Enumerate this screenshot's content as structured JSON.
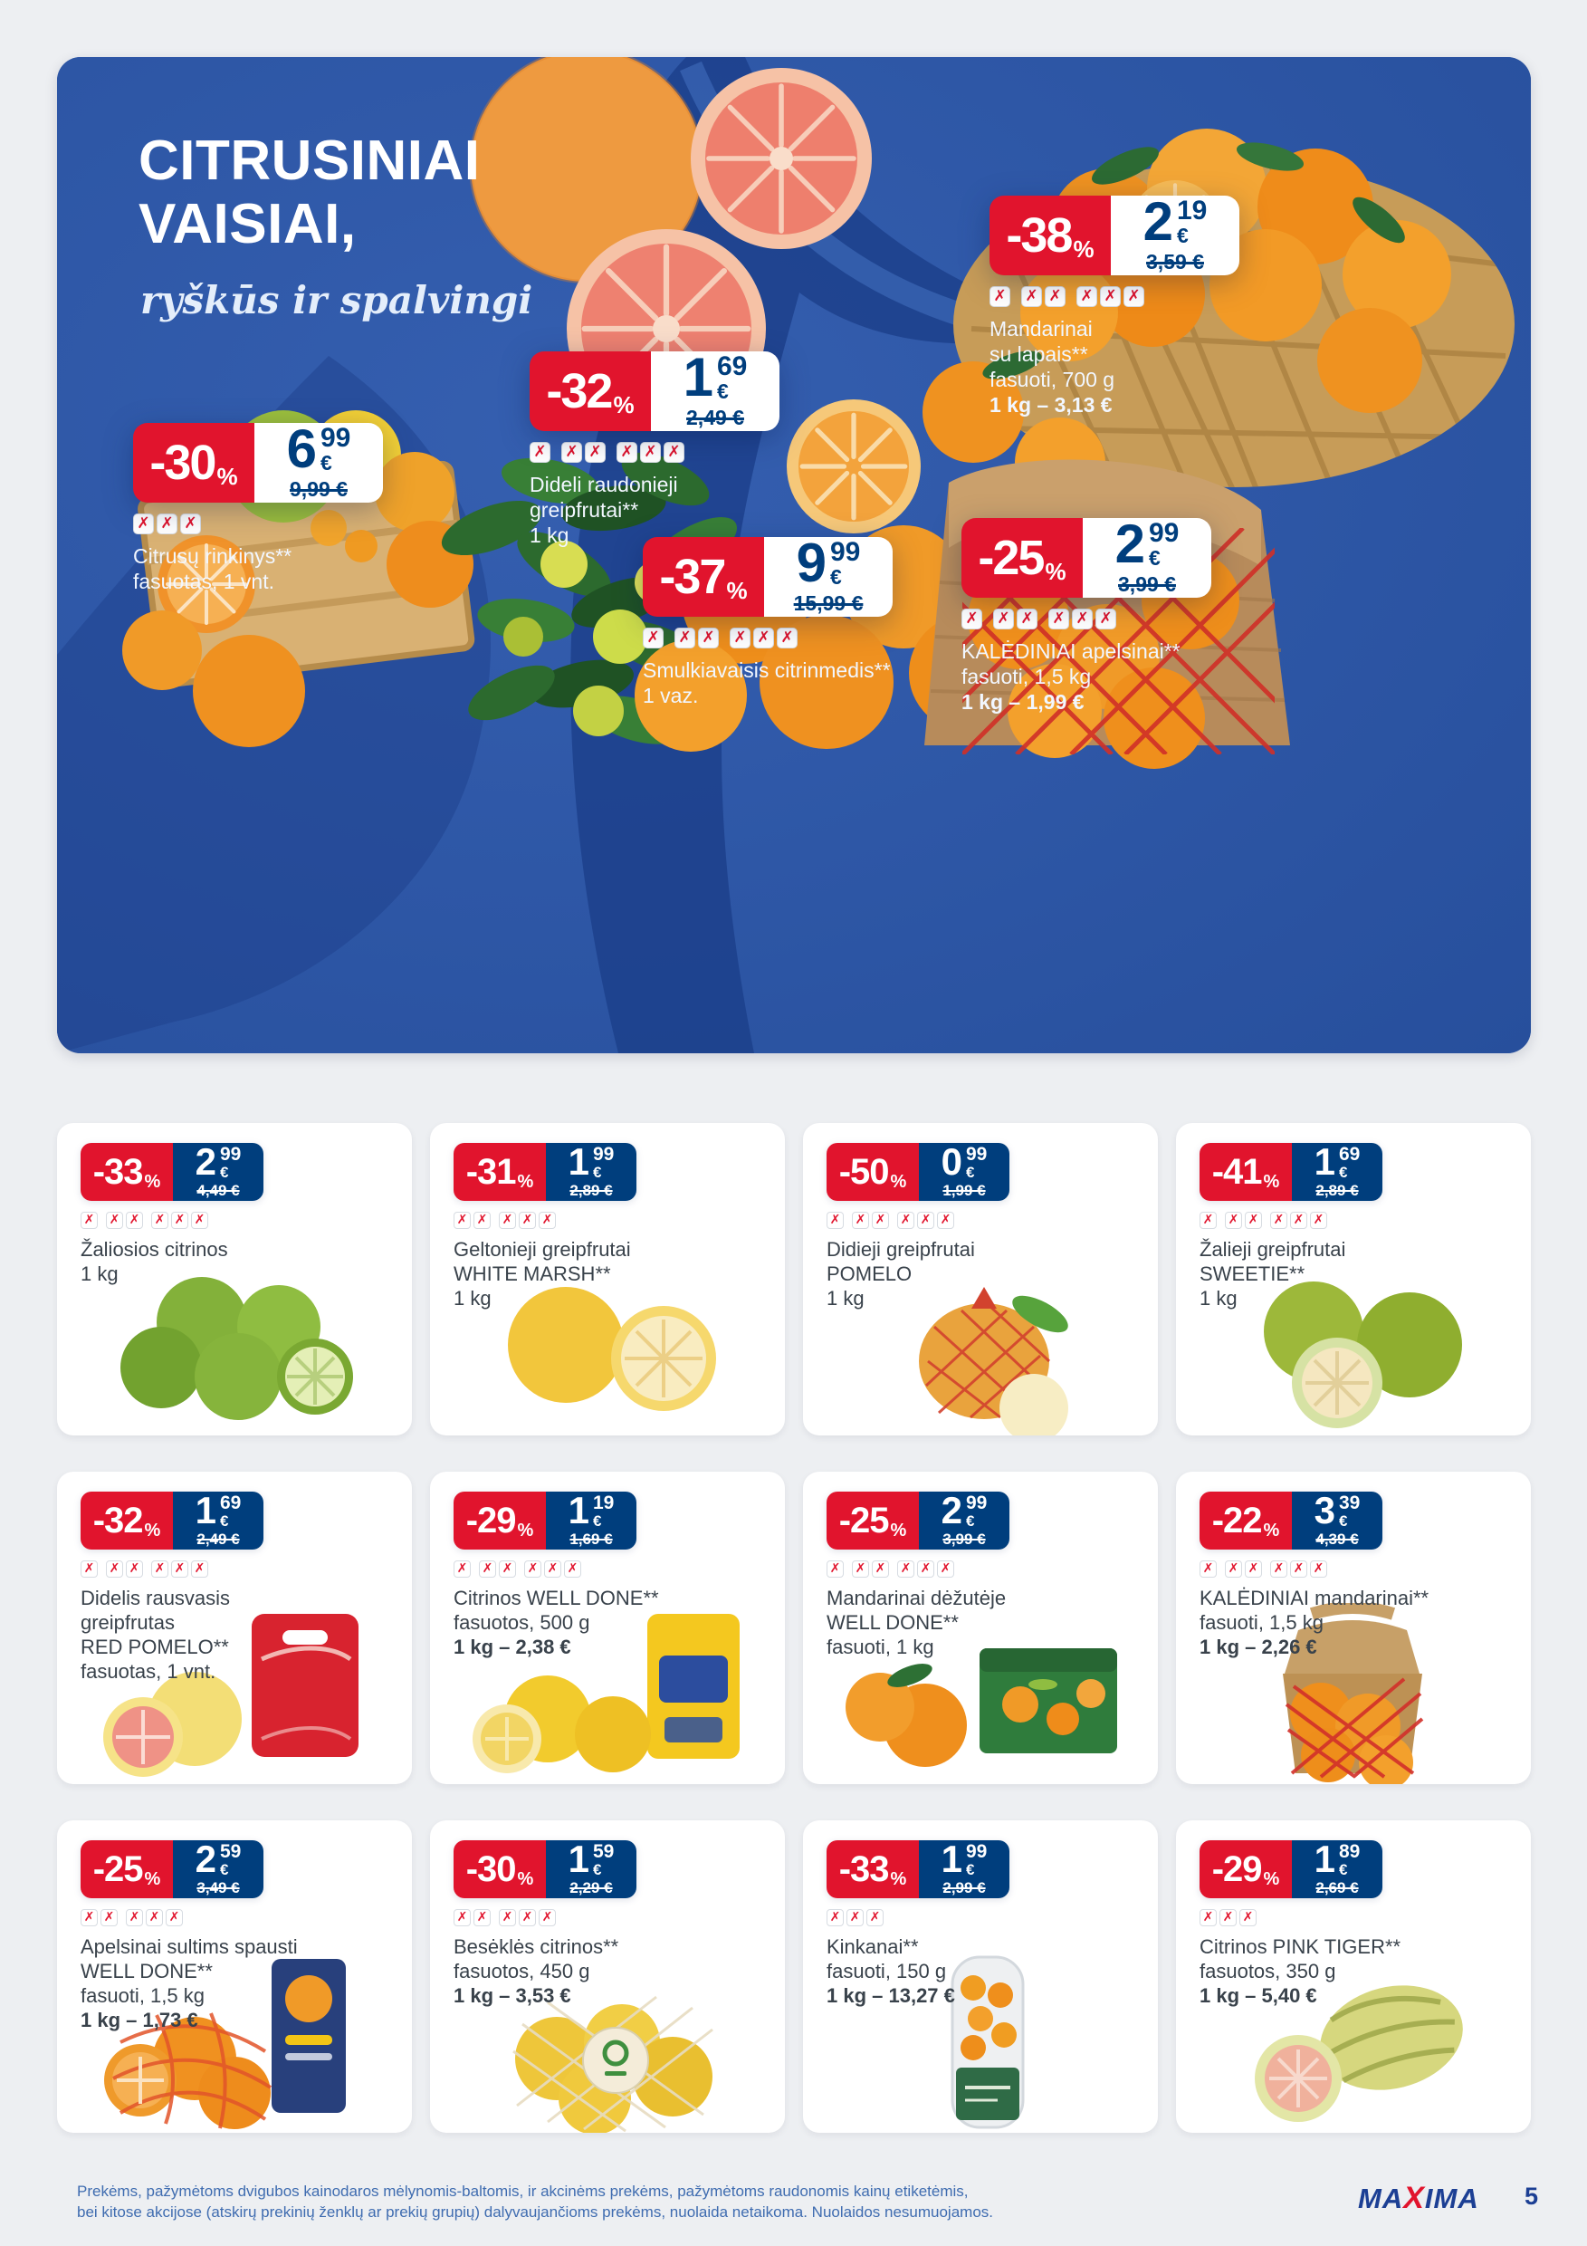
{
  "labels": {
    "percent": "%",
    "euro": "€",
    "store_format_glyph": "✗"
  },
  "colors": {
    "red": "#e1142d",
    "price_blue": "#003e7d",
    "hero_blue": "#2b55a2",
    "text": "#39424b",
    "footer_blue": "#3f6cb0",
    "brand_blue": "#1c3f94"
  },
  "hero": {
    "title_line1": "CITRUSINIAI",
    "title_line2": "VAISIAI,",
    "subtitle": "ryškūs ir spalvingi",
    "offers": [
      {
        "discount": "-30",
        "price_int": "6",
        "price_cents": "99",
        "old_price": "9,99 €",
        "groups": [
          "XXX"
        ],
        "lines": [
          "Citrusų rinkinys**",
          "fasuotas, 1 vnt."
        ],
        "bold_line": ""
      },
      {
        "discount": "-32",
        "price_int": "1",
        "price_cents": "69",
        "old_price": "2,49 €",
        "groups": [
          "X",
          "XX",
          "XXX"
        ],
        "lines": [
          "Dideli raudonieji",
          "greipfrutai**",
          "1 kg"
        ],
        "bold_line": ""
      },
      {
        "discount": "-38",
        "price_int": "2",
        "price_cents": "19",
        "old_price": "3,59 €",
        "groups": [
          "X",
          "XX",
          "XXX"
        ],
        "lines": [
          "Mandarinai",
          "su lapais**",
          "fasuoti, 700 g"
        ],
        "bold_line": "1 kg – 3,13 €"
      },
      {
        "discount": "-37",
        "price_int": "9",
        "price_cents": "99",
        "old_price": "15,99 €",
        "groups": [
          "X",
          "XX",
          "XXX"
        ],
        "lines": [
          "Smulkiavaisis citrinmedis**",
          "1 vaz."
        ],
        "bold_line": ""
      },
      {
        "discount": "-25",
        "price_int": "2",
        "price_cents": "99",
        "old_price": "3,99 €",
        "groups": [
          "X",
          "XX",
          "XXX"
        ],
        "lines": [
          "KALĖDINIAI apelsinai**",
          "fasuoti, 1,5 kg"
        ],
        "bold_line": "1 kg – 1,99 €"
      }
    ]
  },
  "products": [
    {
      "discount": "-33",
      "price_int": "2",
      "price_cents": "99",
      "old_price": "4,49 €",
      "groups": [
        "X",
        "XX",
        "XXX"
      ],
      "lines": [
        "Žaliosios citrinos",
        "1 kg"
      ],
      "bold_line": "",
      "image": "limes"
    },
    {
      "discount": "-31",
      "price_int": "1",
      "price_cents": "99",
      "old_price": "2,89 €",
      "groups": [
        "XX",
        "XXX"
      ],
      "lines": [
        "Geltonieji greipfrutai",
        "WHITE MARSH**",
        "1 kg"
      ],
      "bold_line": "",
      "image": "yellow_grapefruit"
    },
    {
      "discount": "-50",
      "price_int": "0",
      "price_cents": "99",
      "old_price": "1,99 €",
      "groups": [
        "X",
        "XX",
        "XXX"
      ],
      "lines": [
        "Didieji greipfrutai",
        "POMELO",
        "1 kg"
      ],
      "bold_line": "",
      "image": "pomelo_net"
    },
    {
      "discount": "-41",
      "price_int": "1",
      "price_cents": "69",
      "old_price": "2,89 €",
      "groups": [
        "X",
        "XX",
        "XXX"
      ],
      "lines": [
        "Žalieji greipfrutai",
        "SWEETIE**",
        "1 kg"
      ],
      "bold_line": "",
      "image": "sweetie"
    },
    {
      "discount": "-32",
      "price_int": "1",
      "price_cents": "69",
      "old_price": "2,49 €",
      "groups": [
        "X",
        "XX",
        "XXX"
      ],
      "lines": [
        "Didelis rausvasis",
        "greipfrutas",
        "RED POMELO**",
        "fasuotas, 1 vnt."
      ],
      "bold_line": "",
      "image": "red_pomelo_bag"
    },
    {
      "discount": "-29",
      "price_int": "1",
      "price_cents": "19",
      "old_price": "1,69 €",
      "groups": [
        "X",
        "XX",
        "XXX"
      ],
      "lines": [
        "Citrinos WELL DONE**",
        "fasuotos, 500 g"
      ],
      "bold_line": "1 kg – 2,38 €",
      "image": "lemons_pack"
    },
    {
      "discount": "-25",
      "price_int": "2",
      "price_cents": "99",
      "old_price": "3,99 €",
      "groups": [
        "X",
        "XX",
        "XXX"
      ],
      "lines": [
        "Mandarinai dėžutėje",
        "WELL DONE**",
        "fasuoti, 1 kg"
      ],
      "bold_line": "",
      "image": "mandarin_box"
    },
    {
      "discount": "-22",
      "price_int": "3",
      "price_cents": "39",
      "old_price": "4,39 €",
      "groups": [
        "X",
        "XX",
        "XXX"
      ],
      "lines": [
        "KALĖDINIAI mandarinai**",
        "fasuoti, 1,5 kg"
      ],
      "bold_line": "1 kg – 2,26 €",
      "image": "mandarin_sack"
    },
    {
      "discount": "-25",
      "price_int": "2",
      "price_cents": "59",
      "old_price": "3,49 €",
      "groups": [
        "XX",
        "XXX"
      ],
      "lines": [
        "Apelsinai sultims spausti",
        "WELL DONE**",
        "fasuoti, 1,5 kg"
      ],
      "bold_line": "1 kg – 1,73 €",
      "image": "orange_net"
    },
    {
      "discount": "-30",
      "price_int": "1",
      "price_cents": "59",
      "old_price": "2,29 €",
      "groups": [
        "XX",
        "XXX"
      ],
      "lines": [
        "Besėklės citrinos**",
        "fasuotos, 450 g"
      ],
      "bold_line": "1 kg – 3,53 €",
      "image": "seedless_lemons"
    },
    {
      "discount": "-33",
      "price_int": "1",
      "price_cents": "99",
      "old_price": "2,99 €",
      "groups": [
        "XXX"
      ],
      "lines": [
        "Kinkanai**",
        "fasuoti, 150 g"
      ],
      "bold_line": "1 kg – 13,27 €",
      "image": "kumquat_tube"
    },
    {
      "discount": "-29",
      "price_int": "1",
      "price_cents": "89",
      "old_price": "2,69 €",
      "groups": [
        "XXX"
      ],
      "lines": [
        "Citrinos PINK TIGER**",
        "fasuotos, 350 g"
      ],
      "bold_line": "1 kg – 5,40 €",
      "image": "pink_tiger"
    }
  ],
  "footer": {
    "line1": "Prekėms, pažymėtoms dvigubos kainodaros mėlynomis-baltomis, ir akcinėms prekėms, pažymėtoms raudonomis kainų etiketėmis,",
    "line2": "bei kitose akcijose (atskirų prekinių ženklų ar prekių grupių) dalyvaujančioms prekėms, nuolaida netaikoma. Nuolaidos nesumuojamos.",
    "brand_prefix": "MA",
    "brand_x": "X",
    "brand_suffix": "IMA",
    "page_number": "5"
  }
}
